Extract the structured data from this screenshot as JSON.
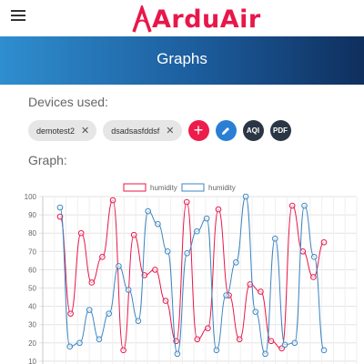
{
  "header": {
    "logo_text": "ArduAir",
    "menu_icon": "menu-icon"
  },
  "banner": {
    "title": "Graphs"
  },
  "devices": {
    "label": "Devices used:",
    "chips": [
      {
        "label": "demotest2"
      },
      {
        "label": "dsadsasfddsf"
      }
    ],
    "actions": {
      "add": "+",
      "aqi": "AQI",
      "pdf": "PDF",
      "edit_icon": "pencil-icon"
    }
  },
  "graph": {
    "label": "Graph:"
  },
  "colors": {
    "red": "#e8174a",
    "blue": "#3f86c0",
    "chip": "#e6e6e6"
  },
  "chart_data": {
    "type": "line",
    "ylim": [
      10,
      100
    ],
    "yticks": [
      100,
      90,
      80,
      70,
      60,
      50,
      40,
      30,
      20,
      10
    ],
    "grid": true,
    "legend": "top-center",
    "series": [
      {
        "name": "humidity",
        "color": "#e8174a",
        "values": [
          89,
          36,
          80,
          53,
          67,
          98,
          16,
          79,
          57,
          60,
          43,
          21,
          97,
          22,
          28,
          93,
          46,
          22,
          52,
          48,
          21,
          17,
          95,
          70,
          56,
          75
        ]
      },
      {
        "name": "humidity",
        "color": "#3f86c0",
        "values": [
          94,
          18,
          20,
          38,
          22,
          36,
          62,
          49,
          32,
          92,
          85,
          70,
          14,
          69,
          81,
          88,
          16,
          46,
          64,
          100,
          37,
          14,
          77,
          19,
          20,
          95,
          67,
          16
        ]
      }
    ]
  }
}
